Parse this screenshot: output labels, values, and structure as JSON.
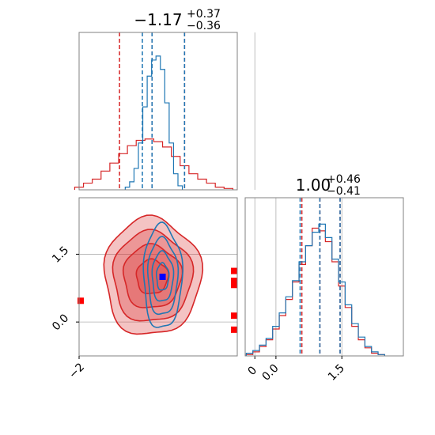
{
  "chart_data": {
    "type": "corner",
    "params": [
      "x",
      "y"
    ],
    "ranges": {
      "x": [
        -2.0,
        -0.2
      ],
      "y": [
        -0.75,
        2.75
      ]
    },
    "y_range_right": [
      -0.7,
      2.9
    ],
    "titles": [
      {
        "value": "−1.17",
        "upper": "+0.37",
        "lower": "−0.36"
      },
      {
        "value": "1.00",
        "upper": "+0.46",
        "lower": "−0.41"
      }
    ],
    "ticks": {
      "x_bottom_left": [
        {
          "v": -2.0,
          "label": "−2"
        },
        {
          "v": 0.0,
          "label": "0"
        }
      ],
      "y_left": [
        {
          "v": 0.0,
          "label": "0.0"
        },
        {
          "v": 1.5,
          "label": "1.5"
        }
      ],
      "x_bottom_right": [
        {
          "v": 0.0,
          "label": "0.0"
        },
        {
          "v": 1.5,
          "label": "1.5"
        }
      ]
    },
    "grid": true,
    "series": [
      {
        "color": "#1f77b4",
        "quantiles_x": [
          -1.28,
          -1.17,
          -0.8
        ],
        "quantiles_y": [
          0.55,
          1.0,
          1.46
        ],
        "hist_x": {
          "centers": [
            -1.45,
            -1.4,
            -1.35,
            -1.3,
            -1.25,
            -1.2,
            -1.15,
            -1.1,
            -1.05,
            -1.0,
            -0.95,
            -0.9,
            -0.85
          ],
          "counts": [
            0.02,
            0.06,
            0.16,
            0.35,
            0.62,
            0.85,
            0.97,
            1.0,
            0.9,
            0.65,
            0.35,
            0.12,
            0.03
          ]
        },
        "hist_y": {
          "centers": [
            -0.6,
            -0.45,
            -0.3,
            -0.15,
            0.0,
            0.15,
            0.3,
            0.45,
            0.6,
            0.75,
            0.9,
            1.05,
            1.2,
            1.35,
            1.5,
            1.65,
            1.8,
            1.95,
            2.1,
            2.25,
            2.4
          ],
          "counts": [
            0.02,
            0.04,
            0.08,
            0.13,
            0.22,
            0.32,
            0.44,
            0.56,
            0.7,
            0.82,
            0.92,
            0.98,
            0.88,
            0.72,
            0.55,
            0.38,
            0.24,
            0.14,
            0.07,
            0.03,
            0.01
          ]
        },
        "contours_2d": {
          "center": [
            -1.05,
            1.0
          ],
          "levels": [
            {
              "sx": 0.22,
              "sy": 1.15
            },
            {
              "sx": 0.17,
              "sy": 0.85
            },
            {
              "sx": 0.12,
              "sy": 0.55
            },
            {
              "sx": 0.07,
              "sy": 0.3
            }
          ]
        },
        "truth": [
          -1.05,
          1.0
        ]
      },
      {
        "color": "#d62728",
        "quantiles_x": [
          -1.54,
          -1.17,
          -0.8
        ],
        "quantiles_y": [
          0.59,
          1.0,
          1.46
        ],
        "hist_x": {
          "centers": [
            -2.0,
            -1.9,
            -1.8,
            -1.7,
            -1.6,
            -1.5,
            -1.4,
            -1.3,
            -1.2,
            -1.1,
            -1.0,
            -0.9,
            -0.8,
            -0.7,
            -0.6,
            -0.5,
            -0.4,
            -0.3
          ],
          "counts": [
            0.02,
            0.05,
            0.08,
            0.14,
            0.2,
            0.27,
            0.33,
            0.37,
            0.38,
            0.36,
            0.32,
            0.25,
            0.18,
            0.12,
            0.08,
            0.05,
            0.02,
            0.01
          ]
        },
        "hist_y": {
          "centers": [
            -0.6,
            -0.45,
            -0.3,
            -0.15,
            0.0,
            0.15,
            0.3,
            0.45,
            0.6,
            0.75,
            0.9,
            1.05,
            1.2,
            1.35,
            1.5,
            1.65,
            1.8,
            1.95,
            2.1,
            2.25,
            2.4
          ],
          "counts": [
            0.01,
            0.03,
            0.07,
            0.12,
            0.2,
            0.3,
            0.42,
            0.55,
            0.68,
            0.82,
            0.95,
            0.93,
            0.85,
            0.7,
            0.52,
            0.36,
            0.22,
            0.12,
            0.06,
            0.02,
            0.01
          ]
        },
        "contours_2d": {
          "center": [
            -1.17,
            1.0
          ],
          "levels": [
            {
              "sx": 0.55,
              "sy": 1.3
            },
            {
              "sx": 0.45,
              "sy": 1.0
            },
            {
              "sx": 0.33,
              "sy": 0.7
            },
            {
              "sx": 0.18,
              "sy": 0.38
            }
          ]
        },
        "points": [
          [
            -3.0,
            0.47
          ],
          [
            -0.22,
            0.91
          ],
          [
            0.12,
            0.82
          ],
          [
            0.58,
            0.14
          ],
          [
            0.64,
            -0.17
          ],
          [
            1.3,
            1.13
          ]
        ]
      }
    ]
  }
}
